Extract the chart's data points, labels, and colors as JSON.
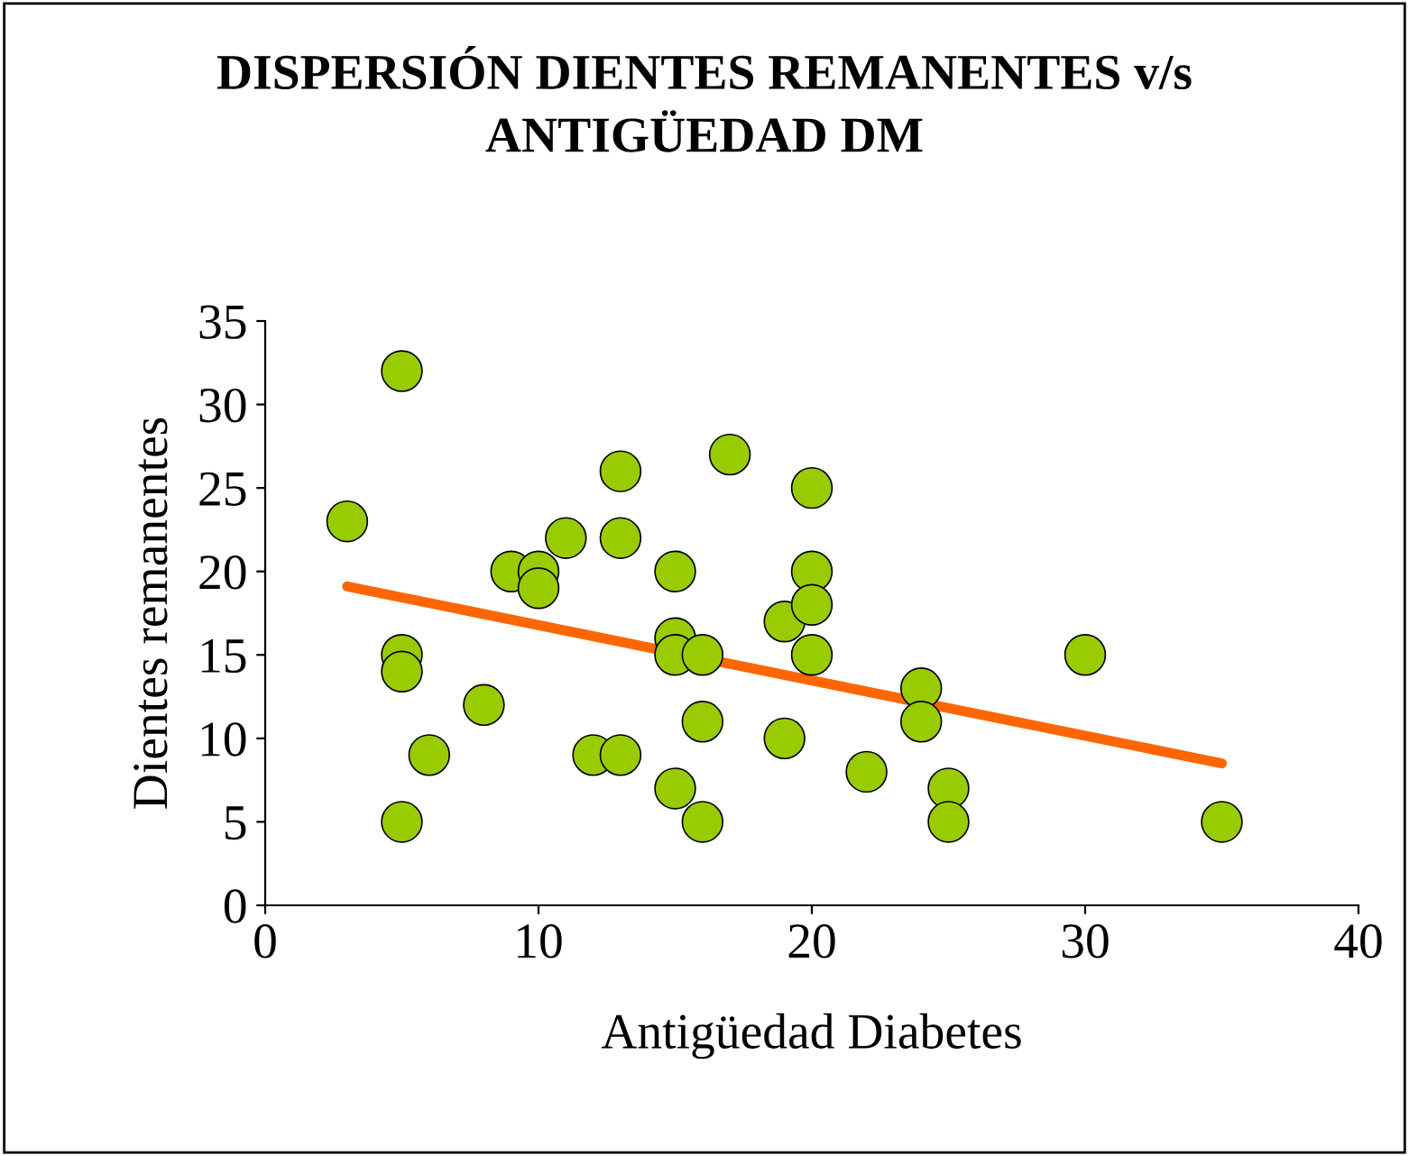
{
  "chart_data": {
    "type": "scatter",
    "title": "DISPERSIÓN DIENTES REMANENTES v/s\nANTIGÜEDAD DM",
    "xlabel": "Antigüedad Diabetes",
    "ylabel": "Dientes remanentes",
    "xlim": [
      0,
      40
    ],
    "ylim": [
      0,
      35
    ],
    "xticks": [
      0,
      10,
      20,
      30,
      40
    ],
    "yticks": [
      0,
      5,
      10,
      15,
      20,
      25,
      30,
      35
    ],
    "grid": false,
    "legend": false,
    "marker": "circle",
    "series": [
      {
        "color": "#99cc00",
        "x": [
          3,
          5,
          5,
          5,
          5,
          6,
          8,
          9,
          10,
          10,
          11,
          12,
          13,
          13,
          13,
          15,
          15,
          15,
          15,
          16,
          16,
          16,
          17,
          19,
          19,
          20,
          20,
          20,
          20,
          22,
          24,
          24,
          25,
          25,
          30,
          35
        ],
        "values": [
          23,
          32,
          15,
          14,
          5,
          9,
          12,
          20,
          20,
          19,
          22,
          9,
          9,
          26,
          22,
          20,
          16,
          15,
          7,
          15,
          11,
          5,
          27,
          17,
          10,
          25,
          20,
          18,
          15,
          8,
          13,
          11,
          7,
          5,
          15,
          5
        ]
      },
      {
        "type": "line",
        "color": "#ff6600",
        "x": [
          3,
          35
        ],
        "values": [
          19.1,
          8.5
        ],
        "marker": "none",
        "line_style": "solid"
      }
    ]
  }
}
